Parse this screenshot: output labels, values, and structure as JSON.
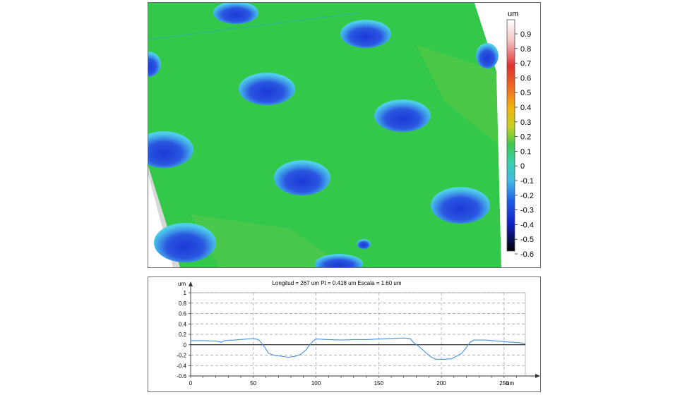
{
  "surface_map": {
    "colorbar": {
      "unit": "um",
      "ticks": [
        "0.9",
        "0.8",
        "0.7",
        "0.6",
        "0.5",
        "0.4",
        "0.3",
        "0.2",
        "0.1",
        "0",
        "-0.1",
        "-0.2",
        "-0.3",
        "-0.4",
        "-0.5",
        "-0.6"
      ]
    },
    "colors": {
      "surface": "#33c84a",
      "pit_rim": "#4fd0e8",
      "pit_center": "#1a3ad6",
      "side_wall": "#d8d8d8"
    }
  },
  "chart_data": {
    "type": "line",
    "title": "Longitud = 267 um  Pt = 0.418 um  Escala = 1.60 um",
    "xlabel": "um",
    "ylabel": "um",
    "xlim": [
      0,
      267
    ],
    "ylim": [
      -0.6,
      1
    ],
    "xticks": [
      "0",
      "50",
      "100",
      "150",
      "200",
      "250"
    ],
    "yticks": [
      "1",
      "0.8",
      "0.6",
      "0.4",
      "0.2",
      "0",
      "-0.2",
      "-0.4",
      "-0.6"
    ],
    "grid": true,
    "series": [
      {
        "color": "#4a90e2",
        "points": [
          [
            0,
            0.08
          ],
          [
            10,
            0.08
          ],
          [
            20,
            0.07
          ],
          [
            25,
            0.05
          ],
          [
            27,
            0.08
          ],
          [
            35,
            0.09
          ],
          [
            45,
            0.11
          ],
          [
            50,
            0.12
          ],
          [
            54,
            0.1
          ],
          [
            57,
            0.02
          ],
          [
            60,
            -0.08
          ],
          [
            62,
            -0.16
          ],
          [
            66,
            -0.2
          ],
          [
            72,
            -0.22
          ],
          [
            78,
            -0.24
          ],
          [
            84,
            -0.22
          ],
          [
            88,
            -0.18
          ],
          [
            92,
            -0.1
          ],
          [
            95,
            0.0
          ],
          [
            98,
            0.08
          ],
          [
            100,
            0.11
          ],
          [
            110,
            0.1
          ],
          [
            120,
            0.09
          ],
          [
            130,
            0.1
          ],
          [
            140,
            0.1
          ],
          [
            150,
            0.11
          ],
          [
            160,
            0.12
          ],
          [
            170,
            0.13
          ],
          [
            175,
            0.12
          ],
          [
            178,
            0.04
          ],
          [
            183,
            -0.05
          ],
          [
            188,
            -0.16
          ],
          [
            192,
            -0.24
          ],
          [
            196,
            -0.28
          ],
          [
            202,
            -0.28
          ],
          [
            208,
            -0.27
          ],
          [
            212,
            -0.22
          ],
          [
            216,
            -0.17
          ],
          [
            220,
            -0.05
          ],
          [
            223,
            0.05
          ],
          [
            226,
            0.09
          ],
          [
            235,
            0.09
          ],
          [
            245,
            0.07
          ],
          [
            255,
            0.05
          ],
          [
            262,
            0.04
          ],
          [
            267,
            0.02
          ]
        ]
      }
    ]
  }
}
